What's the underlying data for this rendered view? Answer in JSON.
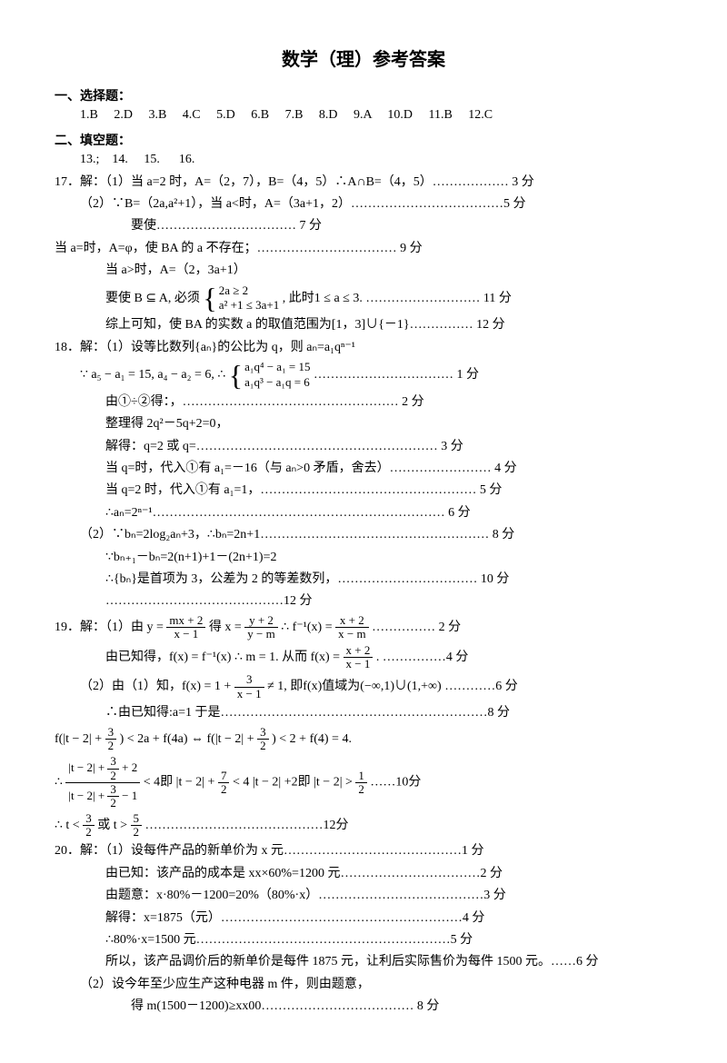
{
  "title": "数学（理）参考答案",
  "section1": {
    "header": "一、选择题：",
    "answers": "1.B     2.D     3.B     4.C     5.D     6.B     7.B     8.D     9.A     10.D     11.B     12.C"
  },
  "section2": {
    "header": "二、填空题：",
    "answers": "13.;    14.     15.      16."
  },
  "q17": {
    "l1": "17．解：（1）当 a=2 时，A=（2，7），B=（4，5）∴A∩B=（4，5）……………… 3 分",
    "l2": "（2）∵B=（2a,a²+1），当 a<时，A=（3a+1，2）………………………………5 分",
    "l3": "要使…………………………… 7 分",
    "l4": "当 a=时，A=φ，使 BA 的 a 不存在；…………………………… 9 分",
    "l5": "当 a>时，A=（2，3a+1）",
    "l6a": "要使 B ⊆ A, 必须",
    "brace1_top": "2a ≥ 2",
    "brace1_bot": "a² +1 ≤ 3a+1",
    "l6b": ", 此时1 ≤ a ≤ 3. ……………………… 11 分",
    "l7": "综上可知，使 BA 的实数 a 的取值范围为[1，3]∪{－1}…………… 12 分"
  },
  "q18": {
    "l1": "18．解：（1）设等比数列{aₙ}的公比为 q，则 aₙ=a₁qⁿ⁻¹",
    "l2a": "∵ a₅ − a₁ = 15, a₄ − a₂ = 6, ∴",
    "brace1_top": "a₁q⁴ − a₁ = 15",
    "brace1_bot": "a₁q³ − a₁q = 6",
    "l2b": "…………………………… 1 分",
    "l3": "由①÷②得：，…………………………………………… 2 分",
    "l4": "整理得 2q²－5q+2=0，",
    "l5": "解得：q=2 或 q=………………………………………………… 3 分",
    "l6": "当 q=时，代入①有 a₁=－16（与 aₙ>0 矛盾，舍去）…………………… 4 分",
    "l7": "当 q=2 时，代入①有 a₁=1，…………………………………………… 5 分",
    "l8": "∴aₙ=2ⁿ⁻¹…………………………………………………………… 6 分",
    "l9": "（2）∵bₙ=2log₂aₙ+3，∴bₙ=2n+1……………………………………………… 8 分",
    "l10": "∵bₙ₊₁－bₙ=2(n+1)+1－(2n+1)=2",
    "l11": "∴{bₙ}是首项为 3，公差为 2 的等差数列，…………………………… 10 分",
    "l12": "……………………………………12 分"
  },
  "q19": {
    "l1a": "19．解：（1）由 y = ",
    "f1n": "mx + 2",
    "f1d": "x − 1",
    "l1b": "得 x = ",
    "f2n": "y + 2",
    "f2d": "y − m",
    "l1c": "     ∴ f⁻¹(x) = ",
    "f3n": "x + 2",
    "f3d": "x − m",
    "l1d": "…………… 2 分",
    "l2a": "由已知得，f(x) = f⁻¹(x)     ∴ m = 1. 从而 f(x) = ",
    "f4n": "x + 2",
    "f4d": "x − 1",
    "l2b": ". ……………4 分",
    "l3a": "（2）由（1）知，f(x) = 1 + ",
    "f5n": "3",
    "f5d": "x − 1",
    "l3b": " ≠ 1, 即f(x)值域为(−∞,1)∪(1,+∞) …………6 分",
    "l4": "∴由已知得:a=1 于是………………………………………………………8 分",
    "l5a": "f(|t − 2| + ",
    "f6n": "3",
    "f6d": "2",
    "l5b": ") < 2a + f(4a) ⇔ f(|t − 2| + ",
    "l5c": ") < 2 + f(4) = 4.",
    "l6a": "∴ ",
    "bigfrac_num_a": "|t − 2| + ",
    "bigfrac_num_b": " + 2",
    "bigfrac_den_a": "|t − 2| + ",
    "bigfrac_den_b": " − 1",
    "l6b": " < 4即 |t − 2| + ",
    "f7n": "7",
    "f7d": "2",
    "l6c": " < 4 |t − 2| +2即 |t − 2| > ",
    "f8n": "1",
    "f8d": "2",
    "l6d": "……10分",
    "l7a": "∴ t < ",
    "f9n": "3",
    "f9d": "2",
    "l7b": "或 t > ",
    "f10n": "5",
    "f10d": "2",
    "l7c": "……………………………………12分"
  },
  "q20": {
    "l1": "20．解：（1）设每件产品的新单价为 x 元……………………………………1 分",
    "l2": "由已知：该产品的成本是 xx×60%=1200 元……………………………2 分",
    "l3": "由题意：x·80%－1200=20%（80%·x）…………………………………3 分",
    "l4": "解得：x=1875（元）…………………………………………………4 分",
    "l5": "∴80%·x=1500 元……………………………………………………5 分",
    "l6": "所以，该产品调价后的新单价是每件 1875 元，让利后实际售价为每件 1500 元。……6 分",
    "l7": "（2）设今年至少应生产这种电器 m 件，则由题意，",
    "l8": "得 m(1500－1200)≥xx00……………………………… 8 分"
  }
}
